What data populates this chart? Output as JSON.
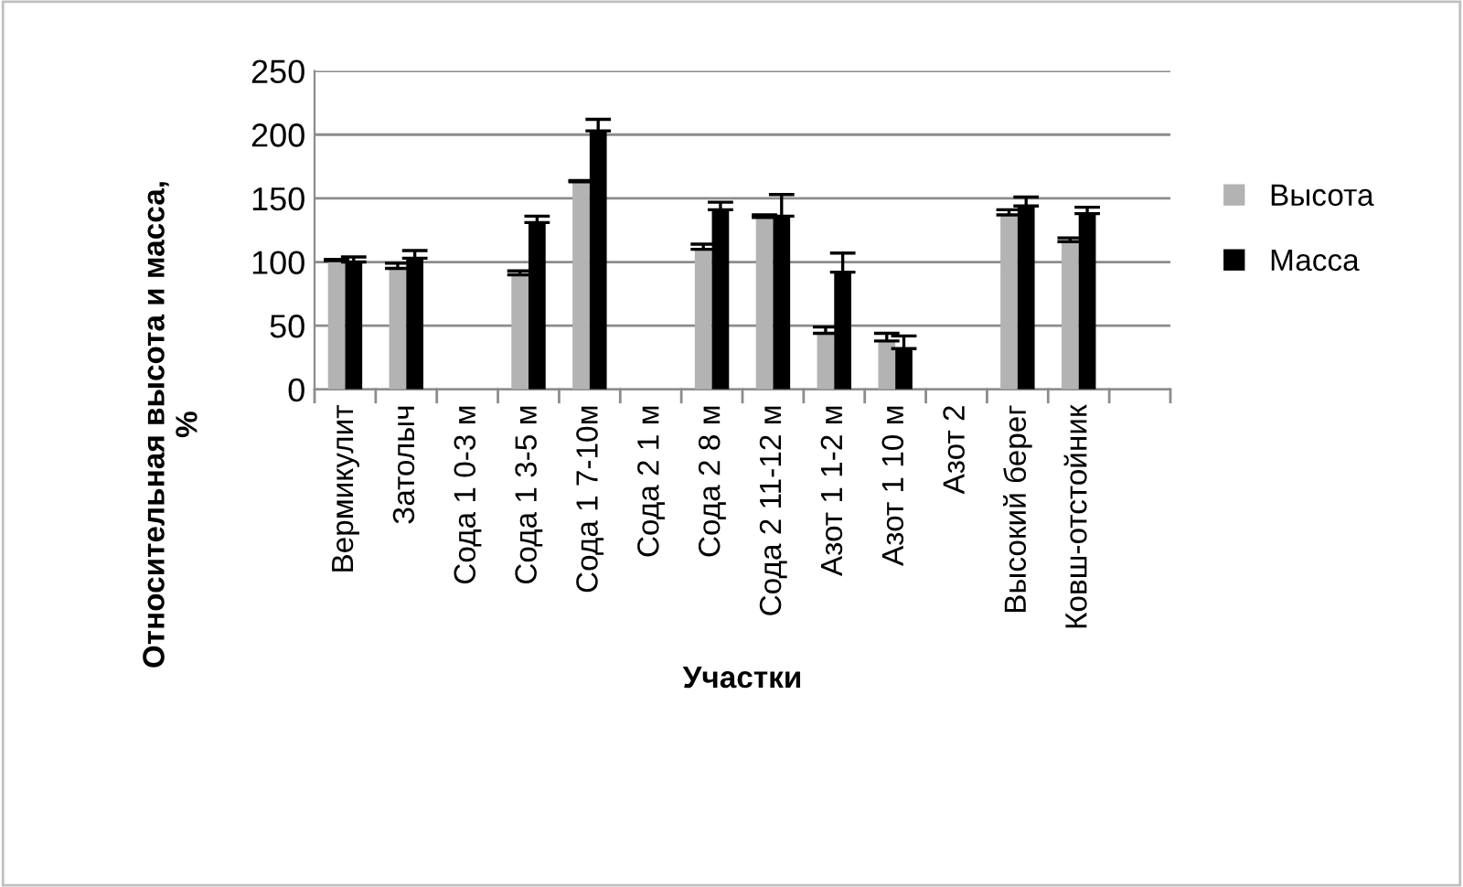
{
  "chart_data": {
    "type": "bar",
    "xlabel": "Участки",
    "ylabel": "Относительная высота и масса, %",
    "categories": [
      "Вермикулит",
      "Затолыч",
      "Сода 1 0-3 м",
      "Сода 1 3-5 м",
      "Сода 1 7-10м",
      "Сода 2 1 м",
      "Сода 2 8 м",
      "Сода 2 11-12 м",
      "Азот 1 1-2 м",
      "Азот 1 10 м",
      "Азот 2",
      "Высокий берег",
      "Ковш-отстойник",
      null
    ],
    "series": [
      {
        "name": "Высота",
        "color": "#b3b3b3",
        "values": [
          101,
          95,
          0,
          90,
          163,
          0,
          110,
          135,
          44,
          38,
          0,
          137,
          116,
          null
        ],
        "errors": [
          [
            101,
            102
          ],
          [
            95,
            99
          ],
          null,
          [
            90,
            93
          ],
          [
            163,
            164
          ],
          null,
          [
            110,
            114
          ],
          [
            135,
            137
          ],
          [
            44,
            49
          ],
          [
            38,
            44
          ],
          null,
          [
            137,
            141
          ],
          [
            116,
            119
          ],
          null
        ]
      },
      {
        "name": "Масса",
        "color": "#000000",
        "values": [
          100,
          103,
          0,
          131,
          203,
          0,
          141,
          136,
          92,
          32,
          0,
          144,
          138,
          null
        ],
        "errors": [
          [
            100,
            104
          ],
          [
            103,
            109
          ],
          null,
          [
            131,
            136
          ],
          [
            203,
            212
          ],
          null,
          [
            141,
            147
          ],
          [
            136,
            153
          ],
          [
            92,
            107
          ],
          [
            32,
            42
          ],
          null,
          [
            144,
            151
          ],
          [
            138,
            143
          ],
          null
        ]
      }
    ],
    "ylim": [
      0,
      250
    ],
    "yticks": [
      0,
      50,
      100,
      150,
      200,
      250
    ],
    "grid": "y",
    "legend": "right"
  }
}
